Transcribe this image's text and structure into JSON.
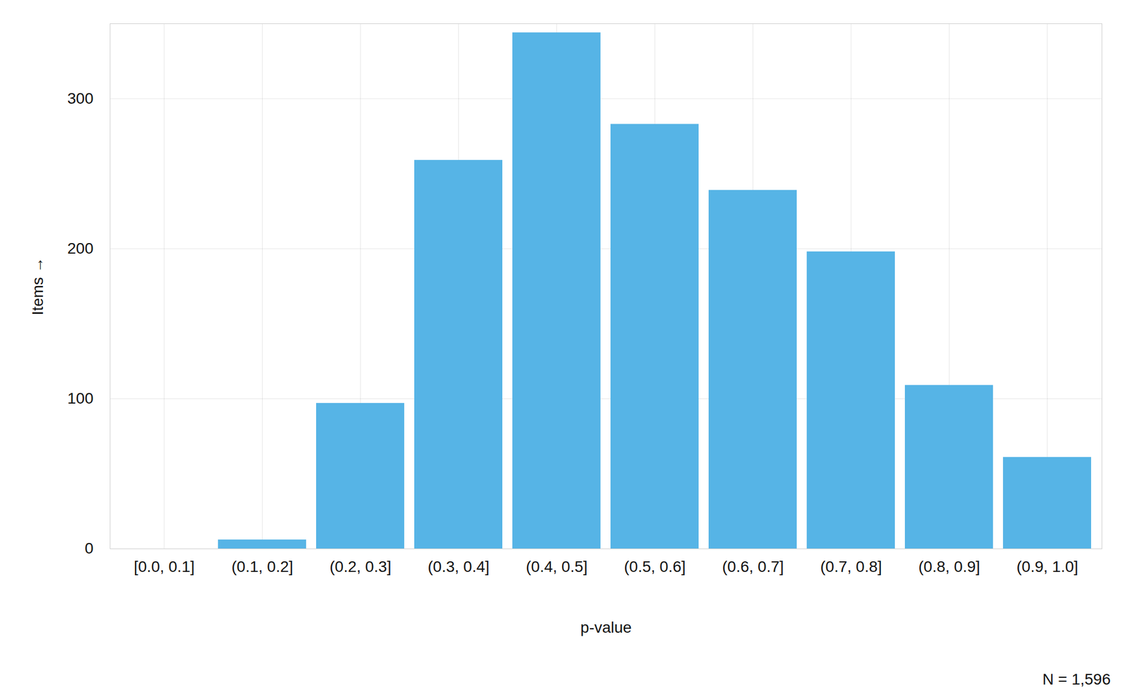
{
  "chart_data": {
    "type": "bar",
    "x_label": "p-value",
    "y_label": "Items",
    "caption": "N = 1,596",
    "categories": [
      "[0.0, 0.1]",
      "(0.1, 0.2]",
      "(0.2, 0.3]",
      "(0.3, 0.4]",
      "(0.4, 0.5]",
      "(0.5, 0.6]",
      "(0.6, 0.7]",
      "(0.7, 0.8]",
      "(0.8, 0.9]",
      "(0.9, 1.0]"
    ],
    "values": [
      0,
      6,
      97,
      259,
      344,
      283,
      239,
      198,
      109,
      61
    ],
    "color": "#56b4e6",
    "ylim": [
      0,
      350
    ],
    "yticks": [
      0,
      100,
      200,
      300
    ],
    "grid": true
  }
}
